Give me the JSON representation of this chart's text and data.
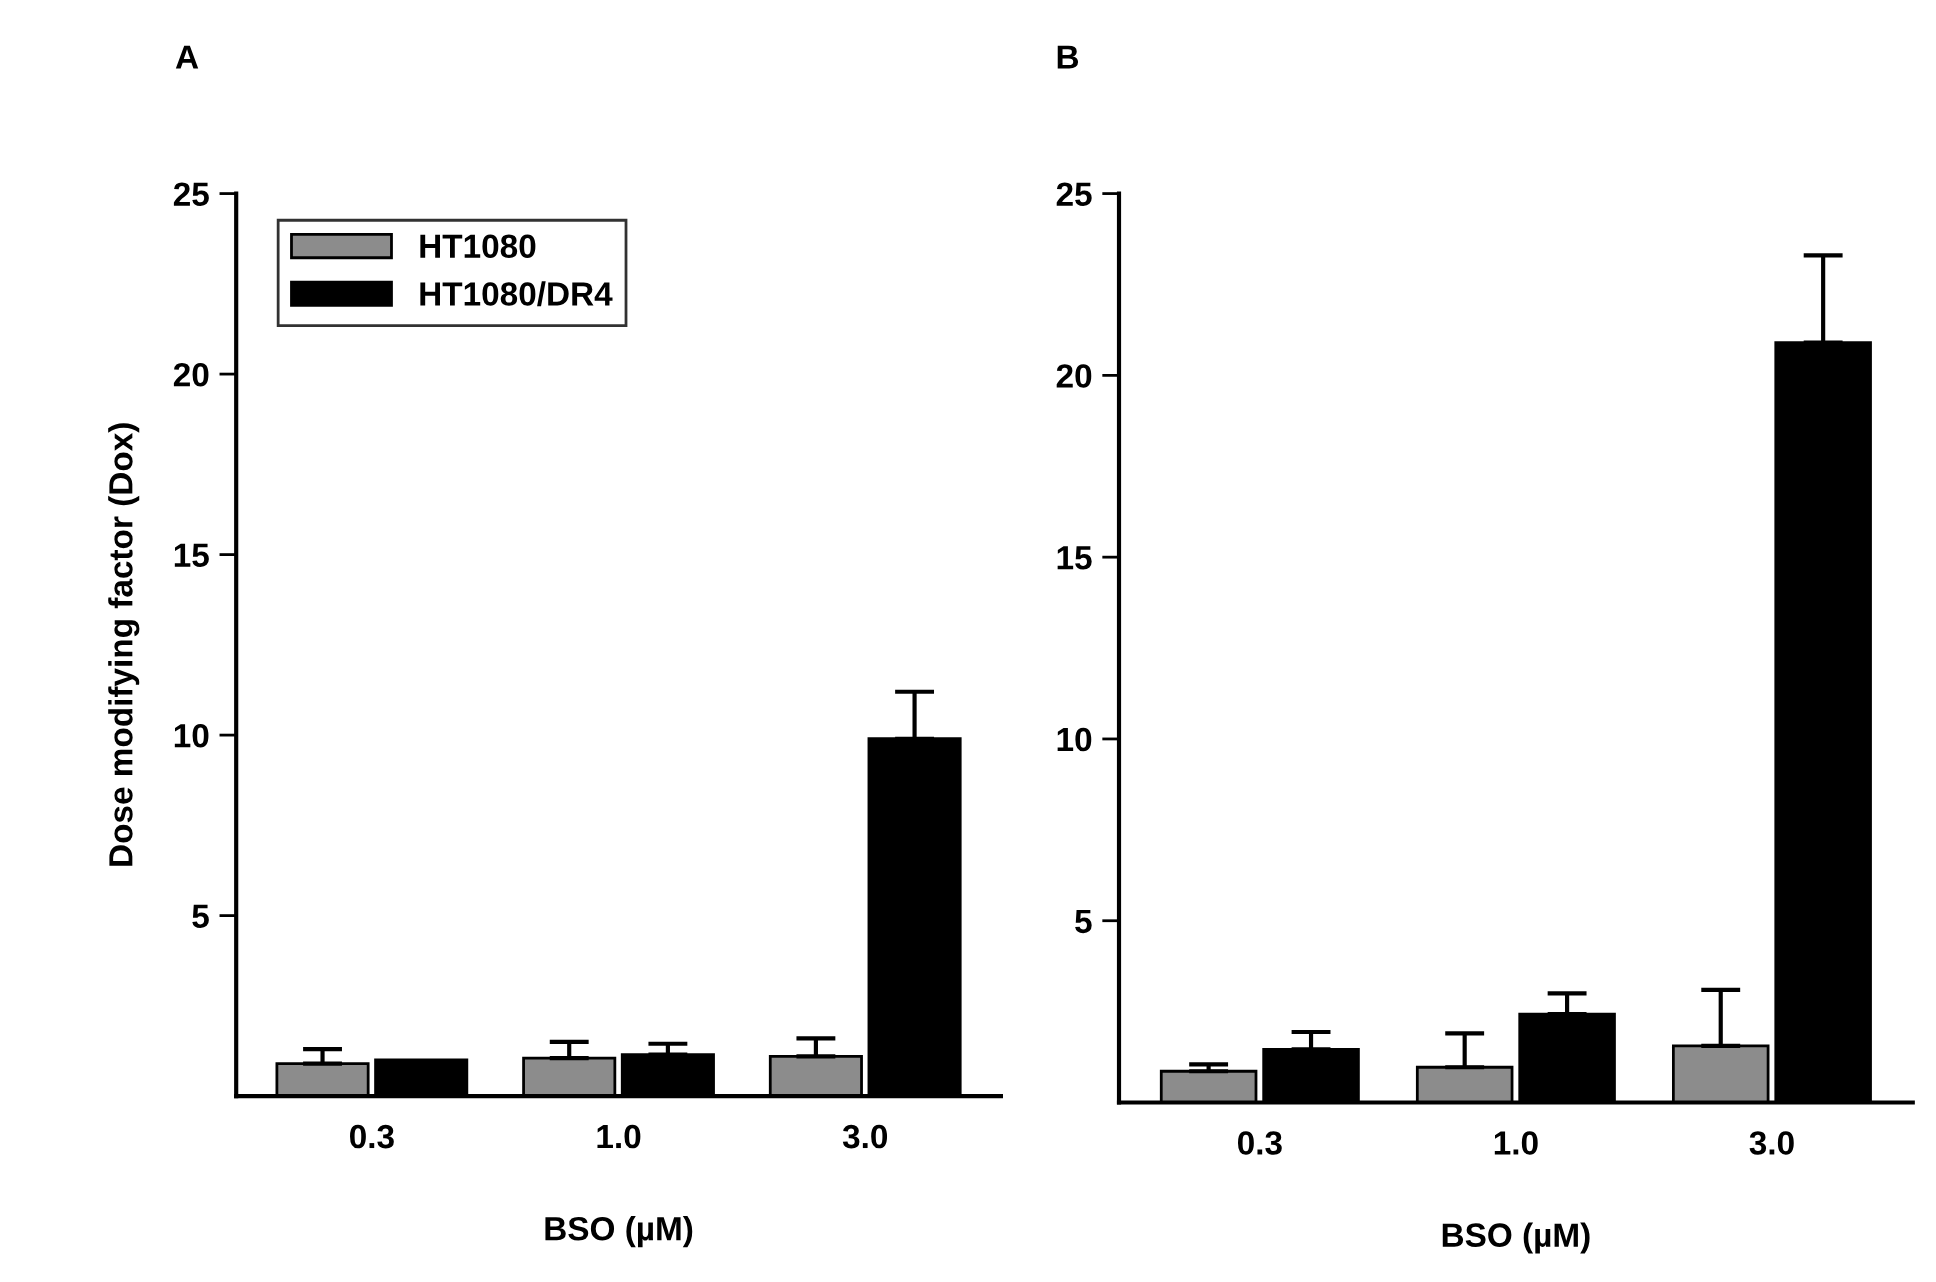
{
  "chart_data": [
    {
      "type": "bar",
      "title": "A",
      "ylabel": "Dose modifying factor (Dox)",
      "xlabel": "BSO (µM)",
      "categories": [
        "0.3",
        "1.0",
        "3.0"
      ],
      "ylim": [
        0,
        25
      ],
      "yticks": [
        5,
        10,
        15,
        20,
        25
      ],
      "grid": false,
      "legend": "top left",
      "series": [
        {
          "name": "HT1080",
          "color": "#8c8c8c",
          "values": [
            0.9,
            1.05,
            1.1
          ],
          "errors": [
            [
              0.9,
              1.3
            ],
            [
              1.05,
              1.5
            ],
            [
              1.1,
              1.6
            ]
          ]
        },
        {
          "name": "HT1080/DR4",
          "color": "#000000",
          "values": [
            1.0,
            1.15,
            9.9
          ],
          "errors": [
            null,
            [
              1.15,
              1.45
            ],
            [
              9.9,
              11.2
            ]
          ]
        }
      ]
    },
    {
      "type": "bar",
      "title": "B",
      "xlabel": "BSO (µM)",
      "categories": [
        "0.3",
        "1.0",
        "3.0"
      ],
      "ylim": [
        0,
        25
      ],
      "yticks": [
        5,
        10,
        15,
        20,
        25
      ],
      "grid": false,
      "series": [
        {
          "color": "#8c8c8c",
          "values": [
            0.86,
            0.97,
            1.56
          ],
          "errors": [
            [
              0.86,
              1.05
            ],
            [
              0.97,
              1.9
            ],
            [
              1.56,
              3.1
            ]
          ]
        },
        {
          "color": "#000000",
          "values": [
            1.46,
            2.43,
            20.9
          ],
          "errors": [
            [
              1.46,
              1.94
            ],
            [
              2.43,
              3.0
            ],
            [
              20.9,
              23.3
            ]
          ]
        }
      ]
    }
  ]
}
